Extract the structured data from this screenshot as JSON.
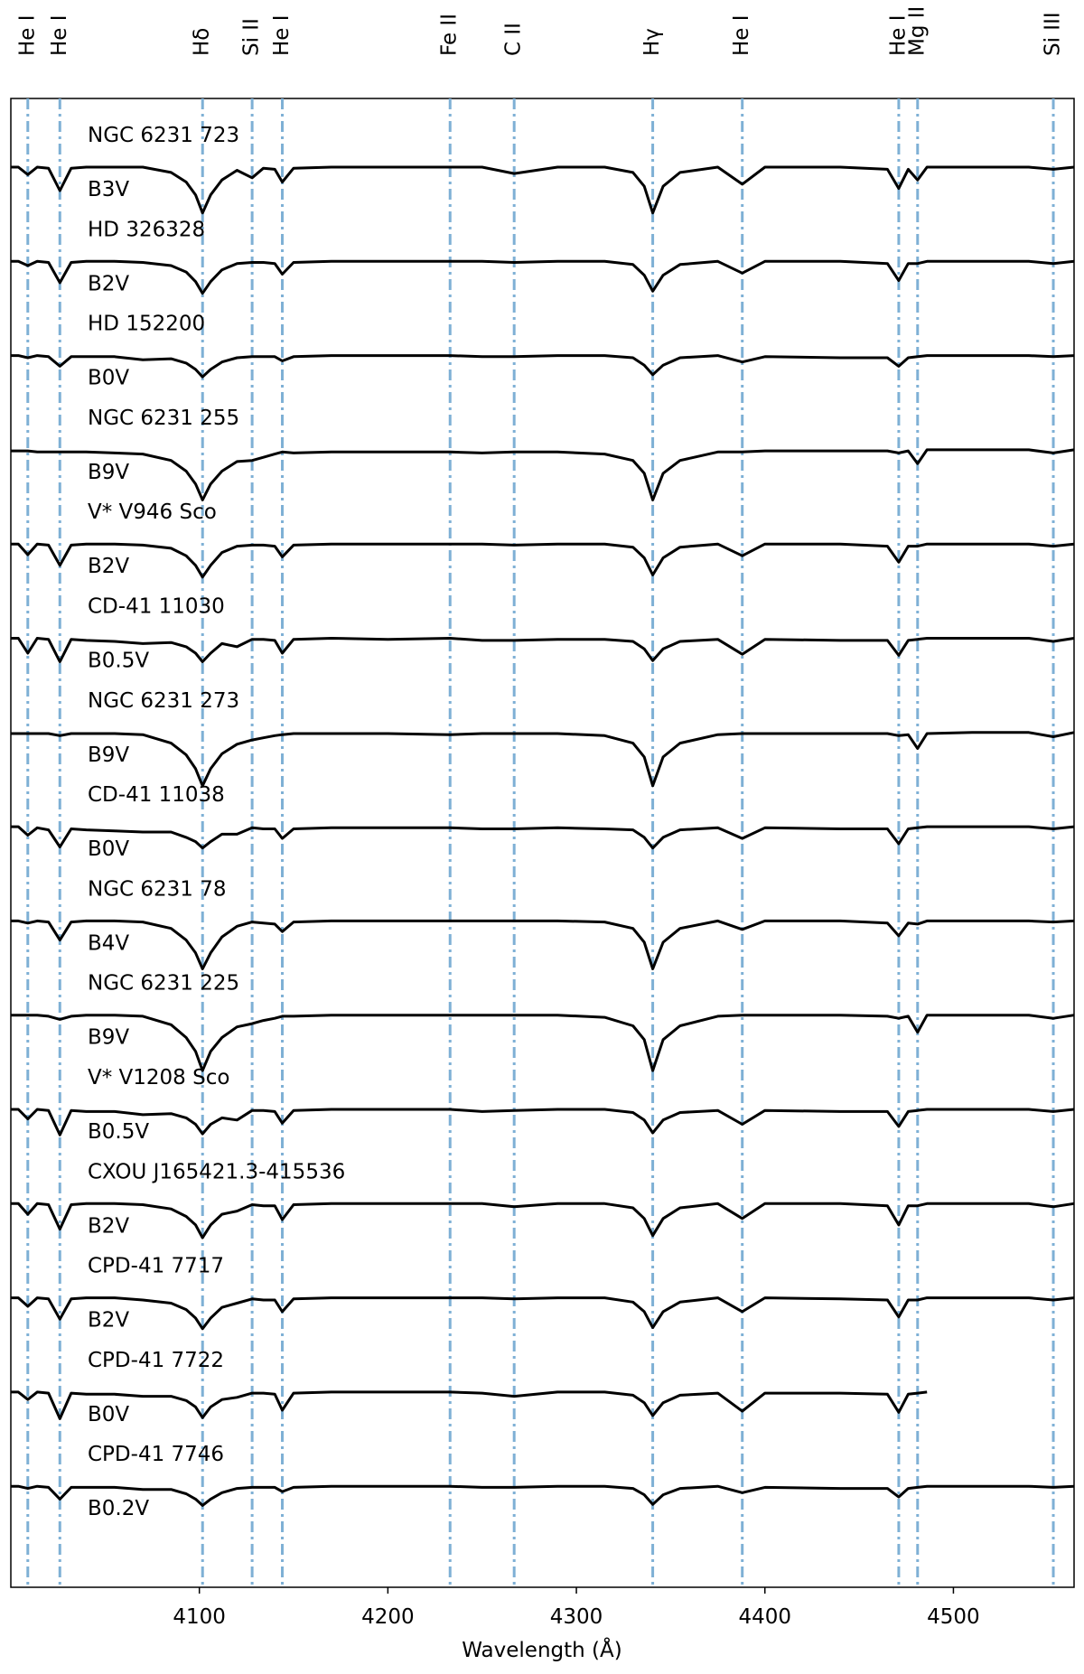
{
  "chart_data": {
    "type": "line",
    "x_label": "Wavelength (Å)",
    "xlim": [
      4000,
      4564
    ],
    "xticks": [
      4100,
      4200,
      4300,
      4400,
      4500
    ],
    "color": "#000000",
    "line_marker_color": "#7eb0d5",
    "line_markers": [
      {
        "label": "He I",
        "value": 4009
      },
      {
        "label": "He I",
        "value": 4026
      },
      {
        "label": "Hδ",
        "value": 4101.7
      },
      {
        "label": "Si II",
        "value": 4128
      },
      {
        "label": "He I",
        "value": 4144
      },
      {
        "label": "Fe II",
        "value": 4233
      },
      {
        "label": "C II",
        "value": 4267
      },
      {
        "label": "Hγ",
        "value": 4340.5
      },
      {
        "label": "He I",
        "value": 4388
      },
      {
        "label": "He I",
        "value": 4471
      },
      {
        "label": "Mg II",
        "value": 4481
      },
      {
        "label": "Si III",
        "value": 4553
      }
    ],
    "x": [
      4000,
      4004,
      4009,
      4014,
      4020,
      4026,
      4032,
      4040,
      4055,
      4070,
      4085,
      4093,
      4098,
      4101.7,
      4106,
      4112,
      4120,
      4128,
      4134,
      4140,
      4144,
      4150,
      4170,
      4200,
      4233,
      4250,
      4267,
      4290,
      4315,
      4330,
      4336,
      4340.5,
      4346,
      4355,
      4375,
      4388,
      4400,
      4440,
      4465,
      4471,
      4476,
      4481,
      4486,
      4510,
      4540,
      4553,
      4564
    ],
    "series": [
      {
        "name": "NGC 6231 723",
        "spectral_type": "B3V",
        "values": [
          1,
          1,
          0.93,
          1,
          0.99,
          0.78,
          0.99,
          1,
          1,
          1,
          0.95,
          0.86,
          0.74,
          0.57,
          0.74,
          0.88,
          0.97,
          0.9,
          0.99,
          0.98,
          0.86,
          0.99,
          1,
          1,
          1,
          1,
          0.94,
          1,
          1,
          0.95,
          0.82,
          0.57,
          0.82,
          0.95,
          1,
          0.84,
          1,
          1,
          0.98,
          0.8,
          0.98,
          0.88,
          1,
          1,
          1,
          0.98,
          1
        ]
      },
      {
        "name": "HD 326328",
        "spectral_type": "B2V",
        "values": [
          1,
          1,
          0.96,
          1,
          0.99,
          0.8,
          0.99,
          1,
          1,
          0.99,
          0.96,
          0.9,
          0.81,
          0.7,
          0.81,
          0.92,
          0.98,
          0.99,
          0.99,
          0.98,
          0.88,
          0.99,
          1,
          1,
          1,
          1,
          0.99,
          1,
          1,
          0.97,
          0.87,
          0.72,
          0.87,
          0.97,
          1,
          0.89,
          1,
          1,
          0.98,
          0.82,
          0.98,
          0.98,
          1,
          1,
          1,
          0.98,
          1
        ]
      },
      {
        "name": "HD 152200",
        "spectral_type": "B0V",
        "values": [
          1,
          1,
          0.98,
          1,
          0.99,
          0.9,
          0.99,
          0.99,
          0.99,
          0.96,
          0.97,
          0.93,
          0.87,
          0.8,
          0.87,
          0.94,
          0.98,
          0.99,
          0.99,
          0.99,
          0.95,
          0.99,
          1,
          1,
          1,
          0.99,
          0.99,
          1,
          1,
          0.98,
          0.91,
          0.82,
          0.91,
          0.98,
          1,
          0.94,
          0.99,
          0.98,
          0.98,
          0.9,
          0.98,
          0.99,
          1,
          1,
          1,
          0.99,
          1
        ]
      },
      {
        "name": "NGC 6231 255",
        "spectral_type": "B9V",
        "values": [
          0.99,
          0.99,
          0.99,
          0.98,
          0.98,
          0.98,
          0.98,
          0.98,
          0.97,
          0.96,
          0.9,
          0.8,
          0.68,
          0.53,
          0.68,
          0.8,
          0.89,
          0.9,
          0.93,
          0.96,
          0.98,
          0.97,
          0.98,
          0.98,
          0.98,
          0.97,
          0.98,
          0.98,
          0.96,
          0.9,
          0.78,
          0.53,
          0.78,
          0.9,
          0.98,
          0.98,
          0.99,
          0.99,
          0.99,
          0.97,
          0.99,
          0.87,
          1,
          1,
          1,
          0.97,
          1
        ]
      },
      {
        "name": "V* V946 Sco",
        "spectral_type": "B2V",
        "values": [
          1,
          1,
          0.9,
          1,
          0.99,
          0.8,
          0.99,
          1,
          1,
          0.99,
          0.96,
          0.89,
          0.8,
          0.69,
          0.8,
          0.92,
          0.98,
          0.99,
          0.99,
          0.98,
          0.88,
          0.99,
          1,
          1,
          1,
          1,
          0.99,
          1,
          1,
          0.97,
          0.87,
          0.71,
          0.87,
          0.97,
          1,
          0.89,
          1,
          1,
          0.98,
          0.83,
          0.98,
          0.98,
          1,
          1,
          1,
          0.98,
          1
        ]
      },
      {
        "name": "CD-41 11030",
        "spectral_type": "B0.5V",
        "values": [
          1,
          1,
          0.86,
          1,
          0.99,
          0.78,
          0.99,
          0.98,
          0.97,
          0.95,
          0.96,
          0.92,
          0.86,
          0.78,
          0.86,
          0.95,
          0.92,
          0.99,
          0.99,
          0.98,
          0.86,
          0.99,
          1,
          0.99,
          1,
          0.98,
          0.98,
          0.99,
          0.99,
          0.97,
          0.9,
          0.79,
          0.9,
          0.97,
          0.99,
          0.85,
          0.99,
          0.98,
          0.98,
          0.84,
          0.98,
          0.99,
          1,
          1,
          1,
          0.97,
          1
        ]
      },
      {
        "name": "NGC 6231 273",
        "spectral_type": "B9V",
        "values": [
          0.99,
          0.99,
          0.99,
          0.99,
          0.99,
          0.97,
          0.99,
          0.99,
          0.99,
          0.98,
          0.9,
          0.79,
          0.66,
          0.5,
          0.66,
          0.8,
          0.89,
          0.93,
          0.95,
          0.97,
          0.98,
          0.99,
          0.99,
          0.99,
          0.98,
          0.99,
          0.99,
          0.99,
          0.97,
          0.9,
          0.77,
          0.5,
          0.77,
          0.9,
          0.98,
          0.99,
          0.99,
          0.99,
          0.99,
          0.97,
          0.98,
          0.85,
          0.99,
          1,
          1,
          0.96,
          1
        ]
      },
      {
        "name": "CD-41 11038",
        "spectral_type": "B0V",
        "values": [
          1,
          1,
          0.92,
          0.99,
          0.97,
          0.81,
          0.98,
          0.97,
          0.96,
          0.95,
          0.95,
          0.9,
          0.86,
          0.8,
          0.86,
          0.93,
          0.93,
          0.99,
          0.98,
          0.98,
          0.89,
          0.98,
          0.99,
          0.99,
          0.99,
          0.98,
          0.98,
          0.99,
          0.98,
          0.97,
          0.9,
          0.8,
          0.9,
          0.97,
          0.99,
          0.89,
          0.99,
          0.98,
          0.98,
          0.84,
          0.98,
          0.99,
          1,
          1,
          1,
          0.98,
          1
        ]
      },
      {
        "name": "NGC 6231 78",
        "spectral_type": "B4V",
        "values": [
          1,
          1,
          0.98,
          1,
          0.99,
          0.82,
          0.99,
          1,
          1,
          0.99,
          0.93,
          0.82,
          0.7,
          0.55,
          0.7,
          0.85,
          0.95,
          0.99,
          0.98,
          0.97,
          0.9,
          0.99,
          1,
          1,
          1,
          1,
          1,
          1,
          0.99,
          0.93,
          0.8,
          0.55,
          0.8,
          0.93,
          1,
          0.92,
          1,
          1,
          0.98,
          0.86,
          0.98,
          0.97,
          1,
          1,
          1,
          0.99,
          1
        ]
      },
      {
        "name": "NGC 6231 225",
        "spectral_type": "B9V",
        "values": [
          1,
          1,
          1,
          1,
          0.99,
          0.96,
          0.99,
          1,
          1,
          0.99,
          0.91,
          0.79,
          0.66,
          0.48,
          0.66,
          0.79,
          0.89,
          0.92,
          0.95,
          0.97,
          0.99,
          0.99,
          1,
          1,
          1,
          1,
          1,
          1,
          0.98,
          0.9,
          0.77,
          0.48,
          0.77,
          0.9,
          0.99,
          1,
          1,
          1,
          0.99,
          0.97,
          0.99,
          0.84,
          1,
          1,
          1,
          0.97,
          1
        ]
      },
      {
        "name": "V* V1208 Sco",
        "spectral_type": "B0.5V",
        "values": [
          1,
          1,
          0.91,
          1,
          0.99,
          0.76,
          0.99,
          0.98,
          0.98,
          0.95,
          0.96,
          0.92,
          0.86,
          0.77,
          0.86,
          0.92,
          0.9,
          0.99,
          0.99,
          0.98,
          0.87,
          0.99,
          1,
          1,
          1,
          0.98,
          0.99,
          1,
          1,
          0.97,
          0.9,
          0.78,
          0.9,
          0.97,
          0.99,
          0.86,
          0.99,
          0.98,
          0.98,
          0.84,
          0.98,
          0.99,
          1,
          1,
          1,
          0.98,
          1
        ]
      },
      {
        "name": "CXOU J165421.3-415536",
        "spectral_type": "B2V",
        "values": [
          1,
          1,
          0.9,
          1,
          0.99,
          0.76,
          0.99,
          1,
          1,
          0.99,
          0.95,
          0.88,
          0.8,
          0.68,
          0.8,
          0.9,
          0.93,
          0.99,
          0.98,
          0.98,
          0.85,
          0.99,
          1,
          1,
          1,
          1,
          0.97,
          1,
          1,
          0.96,
          0.86,
          0.7,
          0.86,
          0.96,
          1,
          0.86,
          1,
          1,
          0.98,
          0.8,
          0.98,
          0.98,
          1,
          1,
          1,
          0.97,
          1
        ]
      },
      {
        "name": "CPD-41 7717",
        "spectral_type": "B2V",
        "values": [
          1,
          1,
          0.92,
          1,
          0.99,
          0.8,
          0.99,
          1,
          1,
          0.98,
          0.95,
          0.89,
          0.81,
          0.71,
          0.81,
          0.91,
          0.95,
          0.99,
          0.98,
          0.98,
          0.87,
          0.99,
          1,
          1,
          1,
          1,
          0.99,
          1,
          1,
          0.96,
          0.87,
          0.72,
          0.87,
          0.96,
          1,
          0.87,
          1,
          0.99,
          0.98,
          0.82,
          0.98,
          0.98,
          1,
          1,
          1,
          0.98,
          1
        ]
      },
      {
        "name": "CPD-41 7722",
        "spectral_type": "B0V",
        "values": [
          1,
          1,
          0.93,
          1,
          0.99,
          0.75,
          0.99,
          0.98,
          0.98,
          0.96,
          0.96,
          0.92,
          0.86,
          0.76,
          0.86,
          0.93,
          0.95,
          0.99,
          0.99,
          0.98,
          0.83,
          0.99,
          1,
          1,
          1,
          0.99,
          0.96,
          1,
          1,
          0.97,
          0.9,
          0.78,
          0.9,
          0.97,
          0.99,
          0.82,
          0.99,
          0.99,
          0.98,
          0.81,
          0.98,
          0.99,
          1,
          null,
          null,
          null,
          null
        ]
      },
      {
        "name": "CPD-41 7746",
        "spectral_type": "B0.2V",
        "values": [
          1,
          1,
          0.98,
          1,
          0.99,
          0.88,
          0.99,
          0.99,
          0.99,
          0.97,
          0.97,
          0.93,
          0.88,
          0.82,
          0.88,
          0.94,
          0.98,
          0.99,
          0.99,
          0.99,
          0.95,
          0.99,
          1,
          1,
          1,
          0.99,
          0.99,
          1,
          1,
          0.98,
          0.92,
          0.83,
          0.92,
          0.98,
          1,
          0.94,
          0.99,
          0.98,
          0.98,
          0.9,
          0.98,
          0.99,
          1,
          1,
          1,
          0.99,
          1
        ]
      }
    ]
  }
}
